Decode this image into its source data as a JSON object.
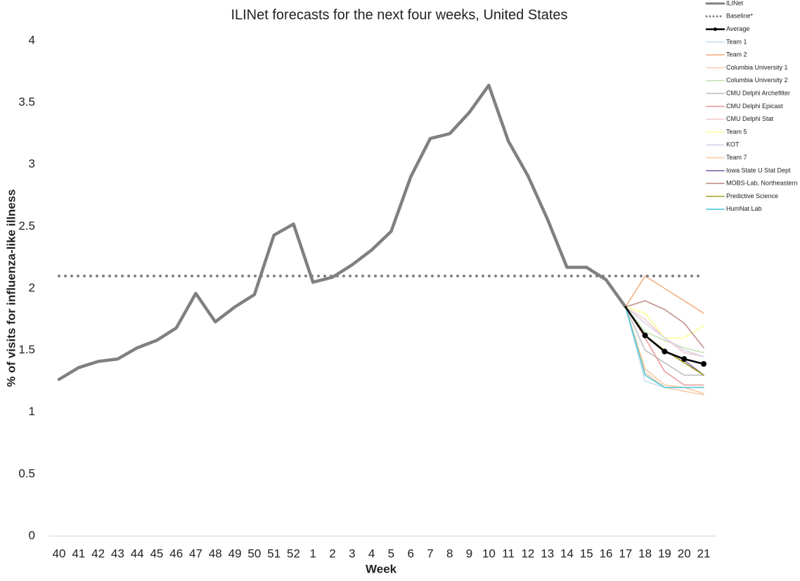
{
  "chart_data": {
    "type": "line",
    "title": "ILINet forecasts for the next four weeks, United States",
    "x_label": "Week",
    "y_label": "% of visits for influenza-like illness",
    "categories": [
      40,
      41,
      42,
      43,
      44,
      45,
      46,
      47,
      48,
      49,
      50,
      51,
      52,
      1,
      2,
      3,
      4,
      5,
      6,
      7,
      8,
      9,
      10,
      11,
      12,
      13,
      14,
      15,
      16,
      17,
      18,
      19,
      20,
      21
    ],
    "ylim": [
      0,
      4
    ],
    "yticks": [
      0,
      0.5,
      1,
      1.5,
      2,
      2.5,
      3,
      3.5,
      4
    ],
    "grid": false,
    "legend": "top-right",
    "series": [
      {
        "name": "ILINet",
        "color": "#808080",
        "values": [
          1.265,
          1.36,
          1.41,
          1.43,
          1.52,
          1.58,
          1.68,
          1.96,
          1.73,
          1.85,
          1.95,
          2.43,
          2.52,
          2.05,
          2.09,
          2.19,
          2.31,
          2.46,
          2.9,
          3.21,
          3.25,
          3.42,
          3.64,
          3.19,
          2.91,
          2.56,
          2.17,
          2.17,
          2.07,
          1.85,
          null,
          null,
          null,
          null
        ]
      },
      {
        "name": "Baseline*",
        "color": "#808080",
        "dash": "dotted",
        "values": [
          2.1,
          2.1,
          2.1,
          2.1,
          2.1,
          2.1,
          2.1,
          2.1,
          2.1,
          2.1,
          2.1,
          2.1,
          2.1,
          2.1,
          2.1,
          2.1,
          2.1,
          2.1,
          2.1,
          2.1,
          2.1,
          2.1,
          2.1,
          2.1,
          2.1,
          2.1,
          2.1,
          2.1,
          2.1,
          2.1,
          2.1,
          2.1,
          2.1,
          2.1
        ]
      },
      {
        "name": "Average",
        "color": "#000000",
        "marker": "circle",
        "values": [
          null,
          null,
          null,
          null,
          null,
          null,
          null,
          null,
          null,
          null,
          null,
          null,
          null,
          null,
          null,
          null,
          null,
          null,
          null,
          null,
          null,
          null,
          null,
          null,
          null,
          null,
          null,
          null,
          null,
          1.85,
          1.62,
          1.49,
          1.43,
          1.39
        ]
      },
      {
        "name": "Team 1",
        "color": "#c6e0f0",
        "values": [
          null,
          null,
          null,
          null,
          null,
          null,
          null,
          null,
          null,
          null,
          null,
          null,
          null,
          null,
          null,
          null,
          null,
          null,
          null,
          null,
          null,
          null,
          null,
          null,
          null,
          null,
          null,
          null,
          null,
          1.85,
          1.25,
          1.2,
          1.2,
          1.2
        ]
      },
      {
        "name": "Team 2",
        "color": "#f4b183",
        "values": [
          null,
          null,
          null,
          null,
          null,
          null,
          null,
          null,
          null,
          null,
          null,
          null,
          null,
          null,
          null,
          null,
          null,
          null,
          null,
          null,
          null,
          null,
          null,
          null,
          null,
          null,
          null,
          null,
          null,
          1.85,
          2.1,
          2.0,
          1.9,
          1.8
        ]
      },
      {
        "name": "Columbia University 1",
        "color": "#f8cbad",
        "values": [
          null,
          null,
          null,
          null,
          null,
          null,
          null,
          null,
          null,
          null,
          null,
          null,
          null,
          null,
          null,
          null,
          null,
          null,
          null,
          null,
          null,
          null,
          null,
          null,
          null,
          null,
          null,
          null,
          null,
          1.85,
          1.32,
          1.2,
          1.17,
          1.14
        ]
      },
      {
        "name": "Columbia University 2",
        "color": "#c5e0b4",
        "values": [
          null,
          null,
          null,
          null,
          null,
          null,
          null,
          null,
          null,
          null,
          null,
          null,
          null,
          null,
          null,
          null,
          null,
          null,
          null,
          null,
          null,
          null,
          null,
          null,
          null,
          null,
          null,
          null,
          null,
          1.85,
          1.65,
          1.58,
          1.52,
          1.48
        ]
      },
      {
        "name": "CMU Delphi Archefilter",
        "color": "#c0c0c0",
        "values": [
          null,
          null,
          null,
          null,
          null,
          null,
          null,
          null,
          null,
          null,
          null,
          null,
          null,
          null,
          null,
          null,
          null,
          null,
          null,
          null,
          null,
          null,
          null,
          null,
          null,
          null,
          null,
          null,
          null,
          1.85,
          1.5,
          1.4,
          1.3,
          1.3
        ]
      },
      {
        "name": "CMU Delphi Epicast",
        "color": "#ea9999",
        "values": [
          null,
          null,
          null,
          null,
          null,
          null,
          null,
          null,
          null,
          null,
          null,
          null,
          null,
          null,
          null,
          null,
          null,
          null,
          null,
          null,
          null,
          null,
          null,
          null,
          null,
          null,
          null,
          null,
          null,
          1.85,
          1.6,
          1.33,
          1.22,
          1.22
        ]
      },
      {
        "name": "CMU Delphi Stat",
        "color": "#f4cccc",
        "values": [
          null,
          null,
          null,
          null,
          null,
          null,
          null,
          null,
          null,
          null,
          null,
          null,
          null,
          null,
          null,
          null,
          null,
          null,
          null,
          null,
          null,
          null,
          null,
          null,
          null,
          null,
          null,
          null,
          null,
          1.85,
          1.75,
          1.6,
          1.48,
          1.45
        ]
      },
      {
        "name": "Team 5",
        "color": "#ffff99",
        "values": [
          null,
          null,
          null,
          null,
          null,
          null,
          null,
          null,
          null,
          null,
          null,
          null,
          null,
          null,
          null,
          null,
          null,
          null,
          null,
          null,
          null,
          null,
          null,
          null,
          null,
          null,
          null,
          null,
          null,
          1.85,
          1.8,
          1.6,
          1.6,
          1.7
        ]
      },
      {
        "name": "KOT",
        "color": "#d9d2e9",
        "values": [
          null,
          null,
          null,
          null,
          null,
          null,
          null,
          null,
          null,
          null,
          null,
          null,
          null,
          null,
          null,
          null,
          null,
          null,
          null,
          null,
          null,
          null,
          null,
          null,
          null,
          null,
          null,
          null,
          null,
          1.85,
          1.72,
          1.6,
          1.5,
          1.45
        ]
      },
      {
        "name": "Team 7",
        "color": "#f6c89e",
        "values": [
          null,
          null,
          null,
          null,
          null,
          null,
          null,
          null,
          null,
          null,
          null,
          null,
          null,
          null,
          null,
          null,
          null,
          null,
          null,
          null,
          null,
          null,
          null,
          null,
          null,
          null,
          null,
          null,
          null,
          1.85,
          1.35,
          1.22,
          1.2,
          1.15
        ]
      },
      {
        "name": "Iowa State U Stat Dept",
        "color": "#8064a2",
        "values": [
          null,
          null,
          null,
          null,
          null,
          null,
          null,
          null,
          null,
          null,
          null,
          null,
          null,
          null,
          null,
          null,
          null,
          null,
          null,
          null,
          null,
          null,
          null,
          null,
          null,
          null,
          null,
          null,
          null,
          1.85,
          1.62,
          1.5,
          1.42,
          1.3
        ]
      },
      {
        "name": "MOBS-Lab, Northeastern",
        "color": "#c0908a",
        "values": [
          null,
          null,
          null,
          null,
          null,
          null,
          null,
          null,
          null,
          null,
          null,
          null,
          null,
          null,
          null,
          null,
          null,
          null,
          null,
          null,
          null,
          null,
          null,
          null,
          null,
          null,
          null,
          null,
          null,
          1.85,
          1.9,
          1.83,
          1.72,
          1.52
        ]
      },
      {
        "name": "Predictive Science",
        "color": "#a0a020",
        "values": [
          null,
          null,
          null,
          null,
          null,
          null,
          null,
          null,
          null,
          null,
          null,
          null,
          null,
          null,
          null,
          null,
          null,
          null,
          null,
          null,
          null,
          null,
          null,
          null,
          null,
          null,
          null,
          null,
          null,
          1.85,
          1.62,
          1.5,
          1.4,
          1.3
        ]
      },
      {
        "name": "HumNat Lab",
        "color": "#4bc8d8",
        "values": [
          null,
          null,
          null,
          null,
          null,
          null,
          null,
          null,
          null,
          null,
          null,
          null,
          null,
          null,
          null,
          null,
          null,
          null,
          null,
          null,
          null,
          null,
          null,
          null,
          null,
          null,
          null,
          null,
          null,
          1.85,
          1.3,
          1.2,
          1.2,
          1.2
        ]
      }
    ]
  }
}
